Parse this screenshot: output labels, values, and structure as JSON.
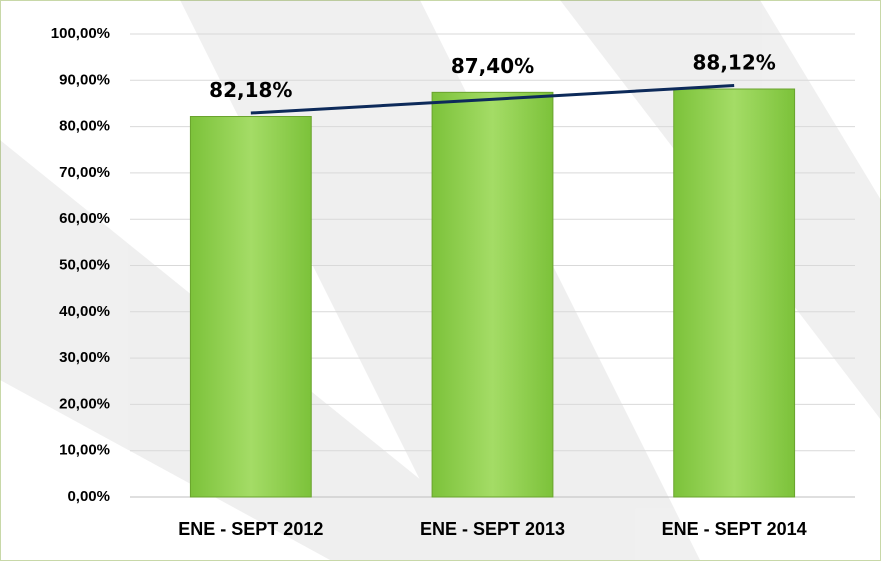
{
  "chart_data": {
    "type": "bar",
    "categories": [
      "ENE - SEPT 2012",
      "ENE - SEPT 2013",
      "ENE - SEPT 2014"
    ],
    "values": [
      82.18,
      87.4,
      88.12
    ],
    "value_labels": [
      "82,18%",
      "87,40%",
      "88,12%"
    ],
    "color": "#92d050",
    "ylim": [
      0,
      100
    ],
    "yticks": [
      {
        "value": 0,
        "label": "0,00%"
      },
      {
        "value": 10,
        "label": "10,00%"
      },
      {
        "value": 20,
        "label": "20,00%"
      },
      {
        "value": 30,
        "label": "30,00%"
      },
      {
        "value": 40,
        "label": "40,00%"
      },
      {
        "value": 50,
        "label": "50,00%"
      },
      {
        "value": 60,
        "label": "60,00%"
      },
      {
        "value": 70,
        "label": "70,00%"
      },
      {
        "value": 80,
        "label": "80,00%"
      },
      {
        "value": 90,
        "label": "90,00%"
      },
      {
        "value": 100,
        "label": "100,00%"
      }
    ],
    "grid": true,
    "trendline": true,
    "trendline_color": "#0d2a5a"
  }
}
